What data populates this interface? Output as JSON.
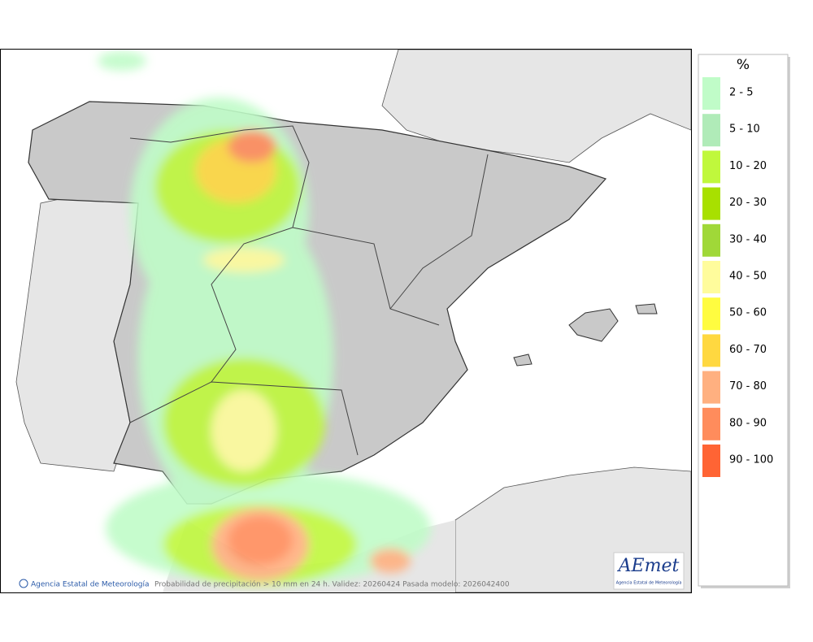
{
  "legend": {
    "title": "%",
    "items": [
      {
        "label": "2 - 5",
        "color": "#c0fcc8"
      },
      {
        "label": "5 - 10",
        "color": "#b0ebb8"
      },
      {
        "label": "10 - 20",
        "color": "#c0f83c"
      },
      {
        "label": "20 - 30",
        "color": "#a8e000"
      },
      {
        "label": "30 - 40",
        "color": "#a0d838"
      },
      {
        "label": "40 - 50",
        "color": "#fffc9c"
      },
      {
        "label": "50 - 60",
        "color": "#fffc40"
      },
      {
        "label": "60 - 70",
        "color": "#ffd840"
      },
      {
        "label": "70 - 80",
        "color": "#ffb080"
      },
      {
        "label": "80 - 90",
        "color": "#ff8c5c"
      },
      {
        "label": "90 - 100",
        "color": "#ff6434"
      }
    ]
  },
  "footer": {
    "credit": "Agencia Estatal de Meteorología",
    "caption": "Probabilidad de precipitación > 10 mm en 24 h. Validez: 20260424 Pasada modelo: 2026042400"
  },
  "logo": {
    "mark": "AEmet",
    "name": "Agencia Estatal de Meteorología"
  }
}
